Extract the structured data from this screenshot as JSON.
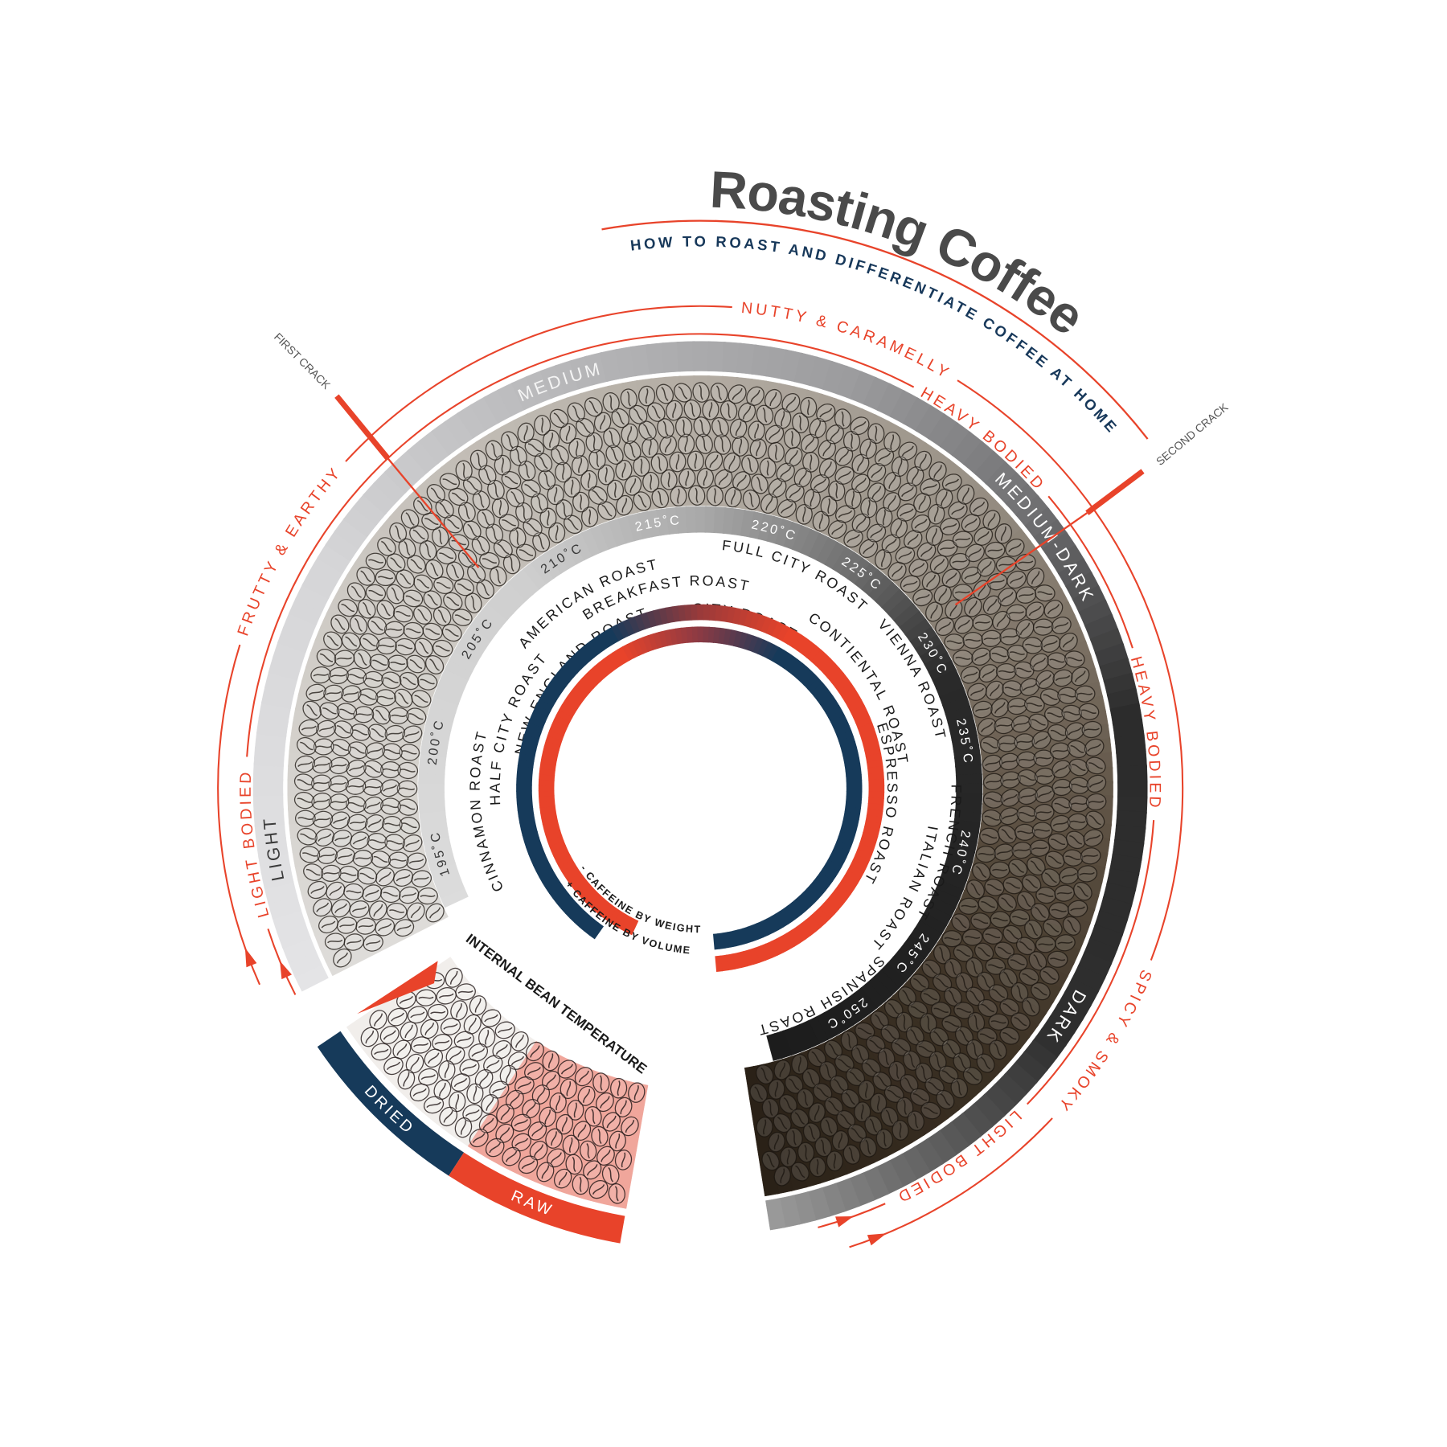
{
  "title": "Roasting Coffee",
  "subtitle": "HOW TO ROAST AND DIFFERENTIATE COFFEE AT HOME",
  "flavor_labels": [
    "FRUTTY & EARTHY",
    "LIGHT BODIED",
    "NUTTY & CARAMELLY",
    "HEAVY BODIED",
    "HEAVY BODIED",
    "SPICY & SMOKY",
    "LIGHT BODIED"
  ],
  "roast_levels": [
    "LIGHT",
    "MEDIUM",
    "MEDIUM-DARK",
    "DARK"
  ],
  "crack_markers": [
    "FIRST CRACK",
    "SECOND CRACK"
  ],
  "temperatures": [
    "195˚C",
    "200˚C",
    "205˚C",
    "210˚C",
    "215˚C",
    "220˚C",
    "225˚C",
    "230˚C",
    "235˚C",
    "240˚C",
    "245˚C",
    "250˚C"
  ],
  "roast_names": [
    "CINNAMON ROAST",
    "HALF CITY ROAST",
    "NEW ENGLAND ROAST",
    "AMERICAN ROAST",
    "BREAKFAST ROAST",
    "CITY ROAST",
    "FULL CITY ROAST",
    "CONTIENTAL ROAST",
    "VIENNA ROAST",
    "ESPRESSO ROAST",
    "FRENCH ROAST",
    "ITALIAN ROAST",
    "SPANISH ROAST"
  ],
  "caffeine_legend": [
    "- CAFFEINE BY WEIGHT",
    "+ CAFFEINE BY VOLUME"
  ],
  "bean_states": [
    "DRIED",
    "RAW"
  ],
  "bean_temperature_label": "INTERNAL BEAN TEMPERATURE"
}
